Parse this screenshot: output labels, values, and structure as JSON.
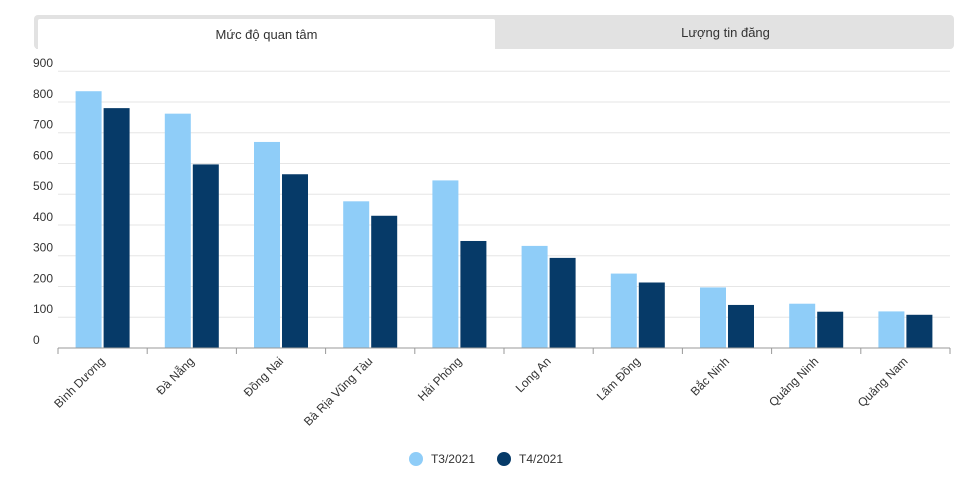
{
  "tabs": [
    {
      "label": "Mức độ quan tâm",
      "active": true
    },
    {
      "label": "Lượng tin đăng",
      "active": false
    }
  ],
  "colors": {
    "series1": "#8fcdf8",
    "series2": "#063a68"
  },
  "chart_data": {
    "type": "bar",
    "categories": [
      "Bình Dương",
      "Đà Nẵng",
      "Đồng Nai",
      "Bà Rịa Vũng Tàu",
      "Hải Phòng",
      "Long An",
      "Lâm Đồng",
      "Bắc Ninh",
      "Quảng Ninh",
      "Quảng Nam"
    ],
    "series": [
      {
        "name": "T3/2021",
        "values": [
          835,
          762,
          670,
          477,
          545,
          332,
          242,
          197,
          144,
          119
        ]
      },
      {
        "name": "T4/2021",
        "values": [
          780,
          597,
          565,
          430,
          348,
          293,
          213,
          140,
          118,
          108
        ]
      }
    ],
    "yticks": [
      0,
      100,
      200,
      300,
      400,
      500,
      600,
      700,
      800,
      900
    ],
    "ylim": [
      0,
      930
    ],
    "grid": true,
    "legend_position": "bottom-center"
  }
}
